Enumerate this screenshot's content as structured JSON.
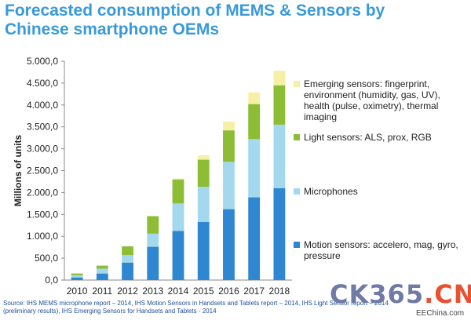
{
  "title": "Forecasted consumption of MEMS & Sensors by Chinese smartphone OEMs",
  "legend": [
    {
      "label": "Emerging sensors: fingerprint, environment (humidity, gas, UV), health (pulse, oximetry), thermal imaging",
      "color": "#f6f0a6"
    },
    {
      "label": "Light sensors: ALS, prox, RGB",
      "color": "#8cbd35"
    },
    {
      "label": "Microphones",
      "color": "#a4d8ef"
    },
    {
      "label": "Motion sensors: accelero, mag, gyro, pressure",
      "color": "#2f86d1"
    }
  ],
  "source": "Source: IHS MEMS microphone report – 2014, IHS Motion Sensors in Handsets and Tablets report – 2014, IHS Light Sensor report – 2014 (preliminary results), IHS Emerging Sensors for Handsets and Tablets - 2014",
  "logo": {
    "main": "CK365",
    "dot": ".",
    "suffix": "CN"
  },
  "watermark": "EEChina.com",
  "chart_data": {
    "type": "bar",
    "stacked": true,
    "ylabel": "Millions of units",
    "xlabel": "",
    "ylim": [
      0,
      5000
    ],
    "yticks": [
      "0,0",
      "500,0",
      "1.000,0",
      "1.500,0",
      "2.000,0",
      "2.500,0",
      "3.000,0",
      "3.500,0",
      "4.000,0",
      "4.500,0",
      "5.000,0"
    ],
    "categories": [
      "2010",
      "2011",
      "2012",
      "2013",
      "2014",
      "2015",
      "2016",
      "2017",
      "2018"
    ],
    "series": [
      {
        "name": "Motion sensors: accelero, mag, gyro, pressure",
        "color": "#2f86d1",
        "values": [
          60,
          150,
          400,
          760,
          1120,
          1330,
          1620,
          1890,
          2100
        ]
      },
      {
        "name": "Microphones",
        "color": "#a4d8ef",
        "values": [
          50,
          110,
          170,
          300,
          630,
          800,
          1080,
          1330,
          1450
        ]
      },
      {
        "name": "Light sensors: ALS, prox, RGB",
        "color": "#8cbd35",
        "values": [
          40,
          70,
          200,
          400,
          550,
          620,
          720,
          800,
          900
        ]
      },
      {
        "name": "Emerging sensors: fingerprint, environment (humidity, gas, UV), health (pulse, oximetry), thermal imaging",
        "color": "#f6f0a6",
        "values": [
          0,
          0,
          0,
          0,
          20,
          100,
          200,
          270,
          330
        ]
      }
    ]
  }
}
